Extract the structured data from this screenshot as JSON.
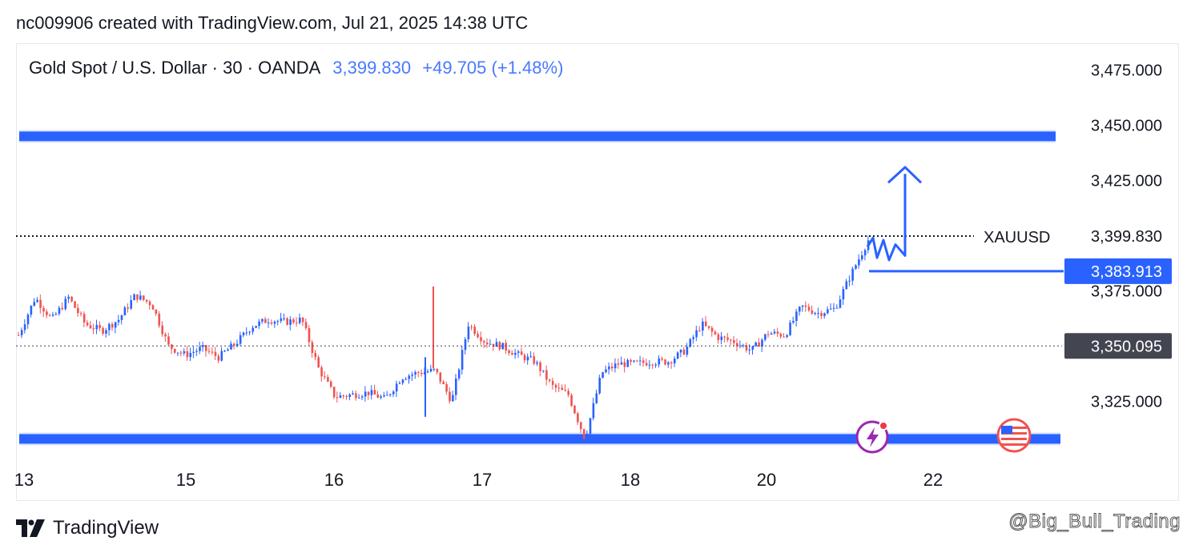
{
  "header": {
    "caption": "nc009906 created with TradingView.com, Jul 21, 2025 14:38 UTC"
  },
  "legend": {
    "symbol": "Gold Spot / U.S. Dollar · 30 · OANDA",
    "price": "3,399.830",
    "change": "+49.705 (+1.48%)"
  },
  "footer": {
    "brand": "TradingView",
    "watermark": "@Big_Bull_Trading"
  },
  "colors": {
    "up": "#2962ff",
    "down": "#ef5350",
    "zone": "#2962ff",
    "label_blue": "#2962ff",
    "label_gray": "#434651"
  },
  "chart_data": {
    "type": "candlestick",
    "title": "Gold Spot / U.S. Dollar · 30 · OANDA",
    "x_ticks": [
      "13",
      "15",
      "16",
      "17",
      "18",
      "20",
      "22"
    ],
    "y_ticks": [
      "3,475.000",
      "3,450.000",
      "3,425.000",
      "3,399.830",
      "3,375.000",
      "3,325.000"
    ],
    "ylim": [
      3302,
      3480
    ],
    "price_path": [
      {
        "x": "13",
        "y": 3355
      },
      {
        "x": "13",
        "y": 3372
      },
      {
        "x": "13",
        "y": 3362
      },
      {
        "x": "13",
        "y": 3372
      },
      {
        "x": "13",
        "y": 3360
      },
      {
        "x": "13",
        "y": 3357
      },
      {
        "x": "13",
        "y": 3362
      },
      {
        "x": "13",
        "y": 3373
      },
      {
        "x": "13",
        "y": 3369
      },
      {
        "x": "15",
        "y": 3350
      },
      {
        "x": "15",
        "y": 3346
      },
      {
        "x": "15",
        "y": 3349
      },
      {
        "x": "15",
        "y": 3345
      },
      {
        "x": "15",
        "y": 3351
      },
      {
        "x": "15",
        "y": 3359
      },
      {
        "x": "15",
        "y": 3362
      },
      {
        "x": "15",
        "y": 3361
      },
      {
        "x": "15",
        "y": 3362
      },
      {
        "x": "16",
        "y": 3340
      },
      {
        "x": "16",
        "y": 3327
      },
      {
        "x": "16",
        "y": 3328
      },
      {
        "x": "16",
        "y": 3329
      },
      {
        "x": "16",
        "y": 3326
      },
      {
        "x": "16",
        "y": 3336
      },
      {
        "x": "16",
        "y": 3338
      },
      {
        "x": "16",
        "y": 3339
      },
      {
        "x": "16",
        "y": 3325
      },
      {
        "x": "17",
        "y": 3360
      },
      {
        "x": "17",
        "y": 3352
      },
      {
        "x": "17",
        "y": 3350
      },
      {
        "x": "17",
        "y": 3346
      },
      {
        "x": "17",
        "y": 3343
      },
      {
        "x": "17",
        "y": 3332
      },
      {
        "x": "17",
        "y": 3328
      },
      {
        "x": "17",
        "y": 3308
      },
      {
        "x": "17",
        "y": 3338
      },
      {
        "x": "18",
        "y": 3342
      },
      {
        "x": "18",
        "y": 3342
      },
      {
        "x": "18",
        "y": 3343
      },
      {
        "x": "18",
        "y": 3343
      },
      {
        "x": "18",
        "y": 3348
      },
      {
        "x": "18",
        "y": 3360
      },
      {
        "x": "18",
        "y": 3354
      },
      {
        "x": "18",
        "y": 3352
      },
      {
        "x": "18",
        "y": 3348
      },
      {
        "x": "20",
        "y": 3356
      },
      {
        "x": "20",
        "y": 3355
      },
      {
        "x": "20",
        "y": 3368
      },
      {
        "x": "20",
        "y": 3365
      },
      {
        "x": "20",
        "y": 3367
      },
      {
        "x": "20",
        "y": 3383
      },
      {
        "x": "20",
        "y": 3398
      }
    ],
    "current_price": 3399.83,
    "current_price_label": "XAUUSD",
    "marked_level": {
      "value": 3383.913,
      "label": "3,383.913"
    },
    "previous_close": {
      "value": 3350.095,
      "label": "3,350.095"
    },
    "resistance_zone": 3445,
    "support_zone": 3308,
    "projection": {
      "direction": "up",
      "target": 3427
    },
    "grid": false
  }
}
